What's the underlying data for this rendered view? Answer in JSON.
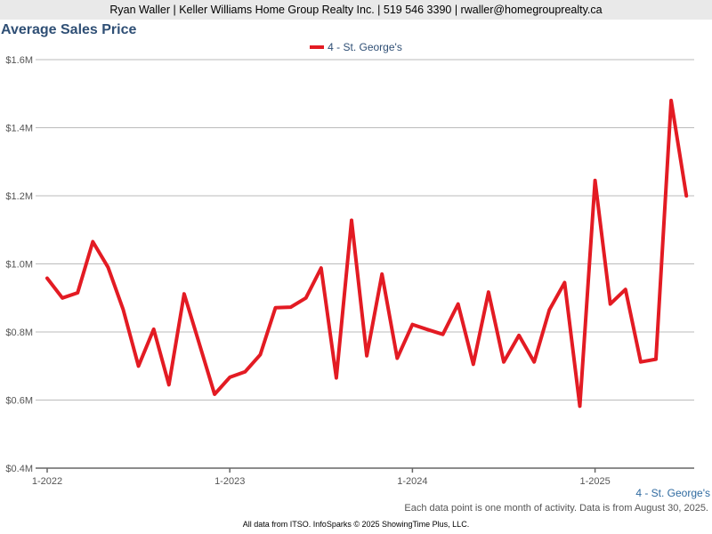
{
  "header": {
    "agent_line": "Ryan Waller | Keller Williams Home Group Realty Inc. | 519 546 3390 | rwaller@homegrouprealty.ca"
  },
  "footer": {
    "series_label": "4 - St. George's",
    "note": "Each data point is one month of activity. Data is from August 30, 2025.",
    "credit": "All data from ITSO. InfoSparks © 2025 ShowingTime Plus, LLC."
  },
  "chart_data": {
    "type": "line",
    "title": "Average Sales Price",
    "legend_position": "top-center",
    "grid": true,
    "x_start": "2022-01",
    "x_ticks": [
      "1-2022",
      "1-2023",
      "1-2024",
      "1-2025"
    ],
    "y_ticks": [
      "$0.4M",
      "$0.6M",
      "$0.8M",
      "$1.0M",
      "$1.2M",
      "$1.4M",
      "$1.6M"
    ],
    "ylim": [
      400000,
      1600000
    ],
    "series": [
      {
        "name": "4 - St. George's",
        "color": "#e31b23",
        "values": [
          958000,
          900000,
          915000,
          1065000,
          990000,
          865000,
          700000,
          808000,
          645000,
          912000,
          765000,
          617000,
          667000,
          683000,
          733000,
          871000,
          873000,
          900000,
          988000,
          665000,
          1128000,
          730000,
          970000,
          723000,
          822000,
          807000,
          793000,
          882000,
          705000,
          917000,
          712000,
          790000,
          712000,
          865000,
          945000,
          582000,
          1245000,
          882000,
          925000,
          712000,
          720000,
          1480000,
          1200000
        ]
      }
    ]
  }
}
